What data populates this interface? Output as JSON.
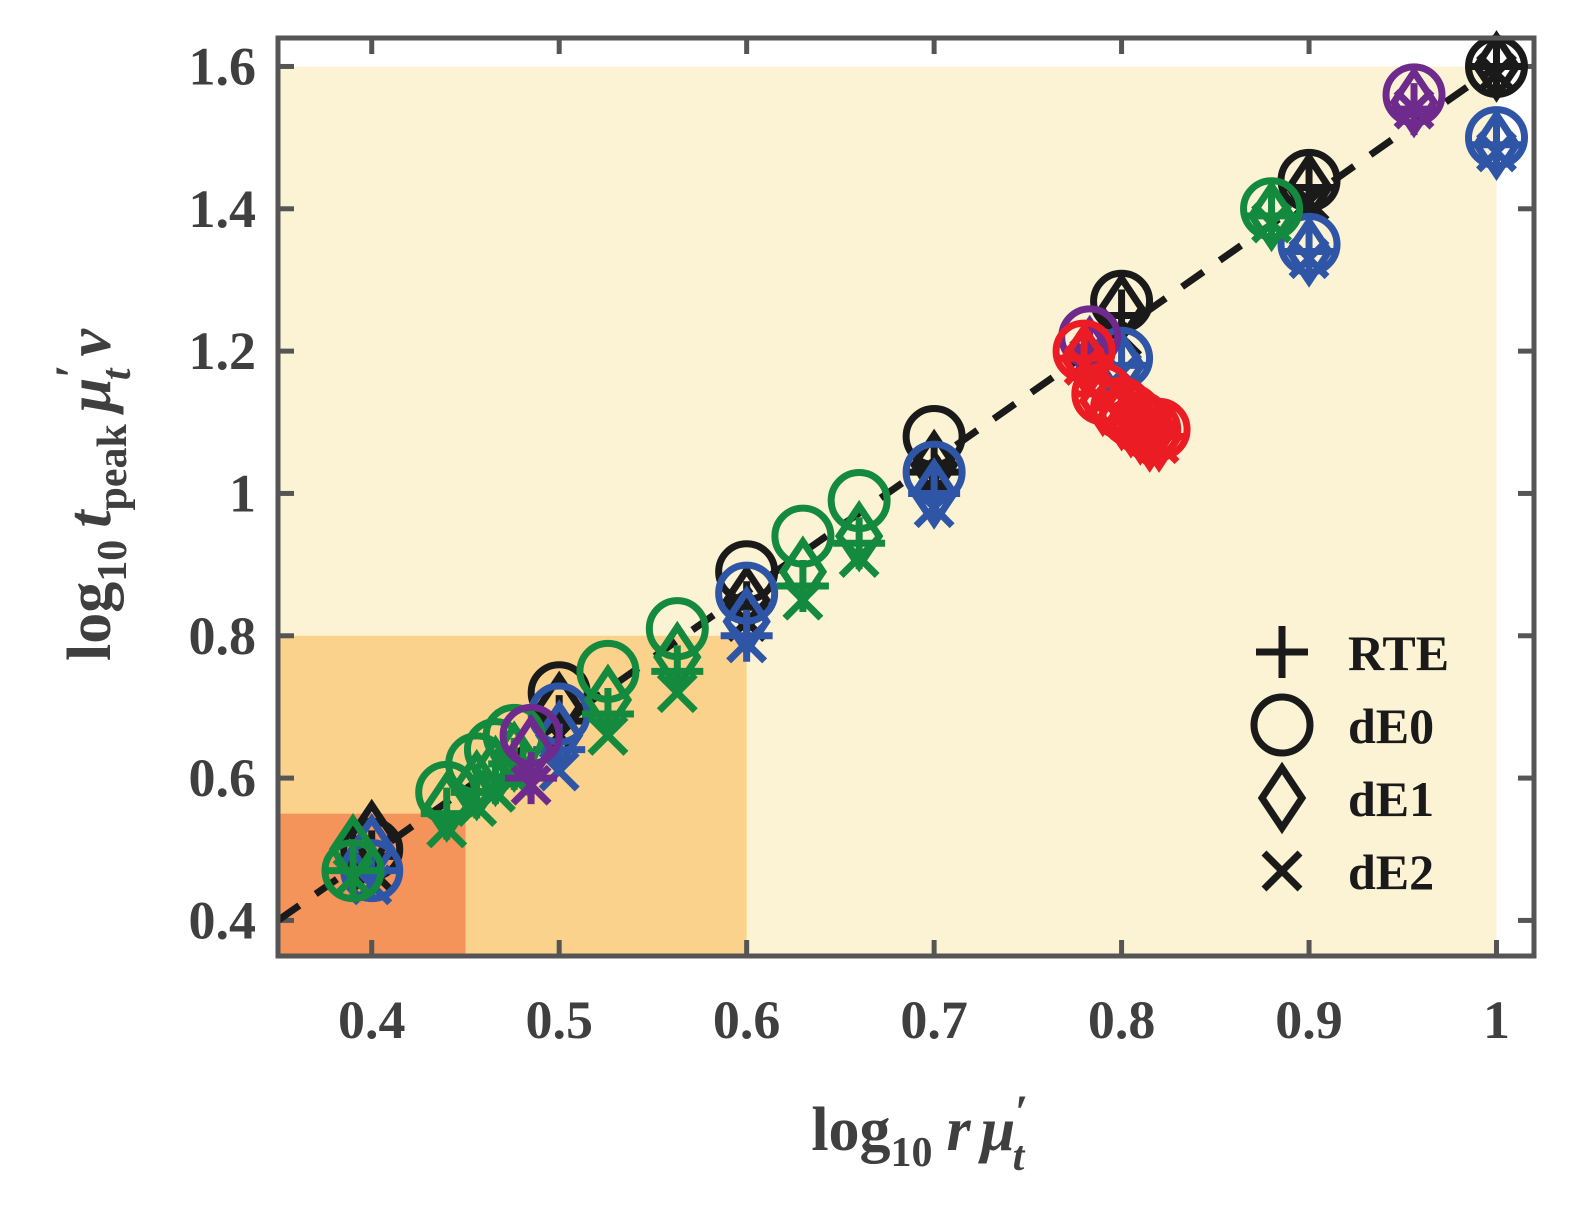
{
  "chart_data": {
    "type": "scatter",
    "title": "",
    "xlabel": {
      "base": "log",
      "sub1": "10",
      "var1": "r",
      "mu": "μ",
      "prime": "′",
      "sub2": "t"
    },
    "ylabel": {
      "base": "log",
      "sub1": "10",
      "var1": "t",
      "sub_peak": "peak",
      "mu": "μ",
      "prime": "′",
      "sub2": "t",
      "var2": "v"
    },
    "xlim": [
      0.35,
      1.02
    ],
    "ylim": [
      0.35,
      1.64
    ],
    "xticks": [
      0.4,
      0.5,
      0.6,
      0.7,
      0.8,
      0.9,
      1
    ],
    "xtick_labels": [
      "0.4",
      "0.5",
      "0.6",
      "0.7",
      "0.8",
      "0.9",
      "1"
    ],
    "yticks": [
      0.4,
      0.6,
      0.8,
      1.0,
      1.2,
      1.4,
      1.6
    ],
    "ytick_labels": [
      "0.4",
      "0.6",
      "0.8",
      "1",
      "1.2",
      "1.4",
      "1.6"
    ],
    "colors": {
      "black": "#1a1a1a",
      "blue": "#2f55a6",
      "green": "#138a3d",
      "purple": "#6e2a8c",
      "red": "#ec1c24",
      "region_light": "#fcf3d4",
      "region_mid": "#fad28c",
      "region_dark": "#f4945a",
      "axis": "#555555"
    },
    "regions": [
      {
        "name": "light",
        "x": [
          0.35,
          1.0
        ],
        "y": [
          0.35,
          1.6
        ]
      },
      {
        "name": "mid",
        "x": [
          0.35,
          0.6
        ],
        "y": [
          0.35,
          0.8
        ]
      },
      {
        "name": "dark",
        "x": [
          0.35,
          0.45
        ],
        "y": [
          0.35,
          0.55
        ]
      }
    ],
    "fit_line": {
      "style": "dashed",
      "x": [
        0.35,
        1.0
      ],
      "y": [
        0.4,
        1.6
      ]
    },
    "legend": {
      "position": "bottom-right",
      "entries": [
        {
          "marker": "plus",
          "label": "RTE"
        },
        {
          "marker": "circle",
          "label": "dE0"
        },
        {
          "marker": "diamond",
          "label": "dE1"
        },
        {
          "marker": "cross",
          "label": "dE2"
        }
      ]
    },
    "series": [
      {
        "name": "black",
        "color": "black",
        "x": [
          0.4,
          0.5,
          0.6,
          0.7,
          0.8,
          0.9,
          1.0
        ],
        "rte": [
          0.49,
          0.68,
          0.84,
          1.03,
          1.25,
          1.43,
          1.6
        ],
        "dE0": [
          0.5,
          0.72,
          0.89,
          1.08,
          1.27,
          1.44,
          1.6
        ],
        "dE1": [
          0.52,
          0.7,
          0.85,
          1.04,
          1.26,
          1.43,
          1.6
        ],
        "dE2": [
          0.47,
          0.66,
          0.82,
          1.02,
          1.22,
          1.41,
          1.59
        ]
      },
      {
        "name": "blue",
        "color": "blue",
        "x": [
          0.4,
          0.5,
          0.6,
          0.7,
          0.8,
          0.9,
          1.0
        ],
        "rte": [
          0.47,
          0.64,
          0.8,
          1.0,
          1.18,
          1.34,
          1.49
        ],
        "dE0": [
          0.47,
          0.69,
          0.86,
          1.03,
          1.19,
          1.35,
          1.5
        ],
        "dE1": [
          0.5,
          0.66,
          0.82,
          1.0,
          1.18,
          1.34,
          1.49
        ],
        "dE2": [
          0.45,
          0.61,
          0.79,
          0.98,
          1.17,
          1.33,
          1.48
        ]
      },
      {
        "name": "green",
        "color": "green",
        "x": [
          0.39,
          0.44,
          0.456,
          0.466,
          0.476,
          0.526,
          0.563,
          0.63,
          0.66,
          0.88
        ],
        "rte": [
          0.47,
          0.55,
          0.58,
          0.6,
          0.62,
          0.69,
          0.75,
          0.87,
          0.93,
          1.39
        ],
        "dE0": [
          0.47,
          0.58,
          0.62,
          0.64,
          0.66,
          0.75,
          0.81,
          0.94,
          0.99,
          1.4
        ],
        "dE1": [
          0.5,
          0.56,
          0.59,
          0.61,
          0.63,
          0.71,
          0.77,
          0.89,
          0.94,
          1.39
        ],
        "dE2": [
          0.46,
          0.53,
          0.56,
          0.58,
          0.6,
          0.66,
          0.72,
          0.85,
          0.91,
          1.38
        ]
      },
      {
        "name": "purple",
        "color": "purple",
        "x": [
          0.485,
          0.783,
          0.956
        ],
        "rte": [
          0.6,
          1.2,
          1.54
        ],
        "dE0": [
          0.66,
          1.22,
          1.56
        ],
        "dE1": [
          0.64,
          1.2,
          1.55
        ],
        "dE2": [
          0.59,
          1.19,
          1.54
        ]
      },
      {
        "name": "red",
        "color": "red",
        "x": [
          0.78,
          0.79,
          0.8,
          0.805,
          0.81,
          0.815,
          0.82
        ],
        "rte": [
          1.19,
          1.14,
          1.12,
          1.1,
          1.1,
          1.09,
          1.08
        ],
        "dE0": [
          1.2,
          1.14,
          1.12,
          1.11,
          1.1,
          1.09,
          1.09
        ],
        "dE1": [
          1.19,
          1.13,
          1.11,
          1.1,
          1.09,
          1.08,
          1.08
        ],
        "dE2": [
          1.18,
          1.13,
          1.11,
          1.1,
          1.09,
          1.08,
          1.07
        ]
      }
    ]
  }
}
